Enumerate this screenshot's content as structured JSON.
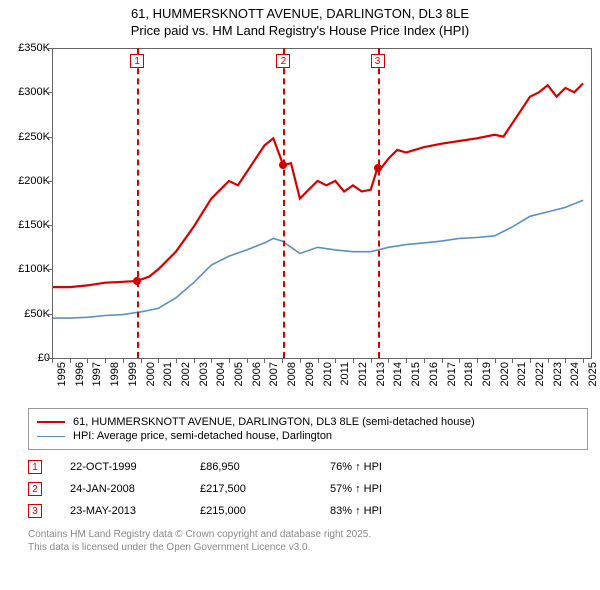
{
  "title_line1": "61, HUMMERSKNOTT AVENUE, DARLINGTON, DL3 8LE",
  "title_line2": "Price paid vs. HM Land Registry's House Price Index (HPI)",
  "chart": {
    "type": "line",
    "background_color": "#ffffff",
    "axis_color": "#666666",
    "xlim": [
      1995,
      2025.5
    ],
    "ylim": [
      0,
      350000
    ],
    "yticks": [
      0,
      50000,
      100000,
      150000,
      200000,
      250000,
      300000,
      350000
    ],
    "ytick_labels": [
      "£0",
      "£50K",
      "£100K",
      "£150K",
      "£200K",
      "£250K",
      "£300K",
      "£350K"
    ],
    "xticks": [
      1995,
      1996,
      1997,
      1998,
      1999,
      2000,
      2001,
      2002,
      2003,
      2004,
      2005,
      2006,
      2007,
      2008,
      2009,
      2010,
      2011,
      2012,
      2013,
      2014,
      2015,
      2016,
      2017,
      2018,
      2019,
      2020,
      2021,
      2022,
      2023,
      2024,
      2025
    ],
    "tick_fontsize": 11,
    "series": {
      "property": {
        "color": "#d60000",
        "width": 2.2,
        "points": [
          [
            1995.0,
            80000
          ],
          [
            1996.0,
            80000
          ],
          [
            1997.0,
            82000
          ],
          [
            1998.0,
            85000
          ],
          [
            1999.0,
            86000
          ],
          [
            1999.8,
            86950
          ],
          [
            2000.5,
            92000
          ],
          [
            2001.0,
            100000
          ],
          [
            2002.0,
            120000
          ],
          [
            2003.0,
            148000
          ],
          [
            2004.0,
            180000
          ],
          [
            2005.0,
            200000
          ],
          [
            2005.5,
            195000
          ],
          [
            2006.0,
            210000
          ],
          [
            2006.5,
            225000
          ],
          [
            2007.0,
            240000
          ],
          [
            2007.5,
            248000
          ],
          [
            2008.07,
            217500
          ],
          [
            2008.5,
            220000
          ],
          [
            2009.0,
            180000
          ],
          [
            2009.5,
            190000
          ],
          [
            2010.0,
            200000
          ],
          [
            2010.5,
            195000
          ],
          [
            2011.0,
            200000
          ],
          [
            2011.5,
            188000
          ],
          [
            2012.0,
            195000
          ],
          [
            2012.5,
            188000
          ],
          [
            2013.0,
            190000
          ],
          [
            2013.39,
            215000
          ],
          [
            2013.5,
            212000
          ],
          [
            2014.0,
            225000
          ],
          [
            2014.5,
            235000
          ],
          [
            2015.0,
            232000
          ],
          [
            2016.0,
            238000
          ],
          [
            2017.0,
            242000
          ],
          [
            2018.0,
            245000
          ],
          [
            2019.0,
            248000
          ],
          [
            2020.0,
            252000
          ],
          [
            2020.5,
            250000
          ],
          [
            2021.0,
            265000
          ],
          [
            2021.5,
            280000
          ],
          [
            2022.0,
            295000
          ],
          [
            2022.5,
            300000
          ],
          [
            2023.0,
            308000
          ],
          [
            2023.5,
            295000
          ],
          [
            2024.0,
            305000
          ],
          [
            2024.5,
            300000
          ],
          [
            2025.0,
            310000
          ]
        ]
      },
      "hpi": {
        "color": "#5b8fc7",
        "width": 1.6,
        "points": [
          [
            1995.0,
            45000
          ],
          [
            1996.0,
            45000
          ],
          [
            1997.0,
            46000
          ],
          [
            1998.0,
            48000
          ],
          [
            1999.0,
            49000
          ],
          [
            2000.0,
            52000
          ],
          [
            2001.0,
            56000
          ],
          [
            2002.0,
            68000
          ],
          [
            2003.0,
            85000
          ],
          [
            2004.0,
            105000
          ],
          [
            2005.0,
            115000
          ],
          [
            2006.0,
            122000
          ],
          [
            2007.0,
            130000
          ],
          [
            2007.5,
            135000
          ],
          [
            2008.0,
            132000
          ],
          [
            2009.0,
            118000
          ],
          [
            2010.0,
            125000
          ],
          [
            2011.0,
            122000
          ],
          [
            2012.0,
            120000
          ],
          [
            2013.0,
            120000
          ],
          [
            2014.0,
            125000
          ],
          [
            2015.0,
            128000
          ],
          [
            2016.0,
            130000
          ],
          [
            2017.0,
            132000
          ],
          [
            2018.0,
            135000
          ],
          [
            2019.0,
            136000
          ],
          [
            2020.0,
            138000
          ],
          [
            2021.0,
            148000
          ],
          [
            2022.0,
            160000
          ],
          [
            2023.0,
            165000
          ],
          [
            2024.0,
            170000
          ],
          [
            2025.0,
            178000
          ]
        ]
      }
    },
    "markers": [
      {
        "n": "1",
        "year": 1999.81,
        "value": 86950
      },
      {
        "n": "2",
        "year": 2008.07,
        "value": 217500
      },
      {
        "n": "3",
        "year": 2013.39,
        "value": 215000
      }
    ],
    "marker_box_color": "#d60000",
    "marker_dot_color": "#d60000"
  },
  "legend": {
    "items": [
      {
        "color": "#d60000",
        "width": 2.2,
        "label": "61, HUMMERSKNOTT AVENUE, DARLINGTON, DL3 8LE (semi-detached house)"
      },
      {
        "color": "#5b8fc7",
        "width": 1.6,
        "label": "HPI: Average price, semi-detached house, Darlington"
      }
    ]
  },
  "sales": [
    {
      "n": "1",
      "date": "22-OCT-1999",
      "price": "£86,950",
      "hpi": "76% ↑ HPI"
    },
    {
      "n": "2",
      "date": "24-JAN-2008",
      "price": "£217,500",
      "hpi": "57% ↑ HPI"
    },
    {
      "n": "3",
      "date": "23-MAY-2013",
      "price": "£215,000",
      "hpi": "83% ↑ HPI"
    }
  ],
  "footer_line1": "Contains HM Land Registry data © Crown copyright and database right 2025.",
  "footer_line2": "This data is licensed under the Open Government Licence v3.0."
}
